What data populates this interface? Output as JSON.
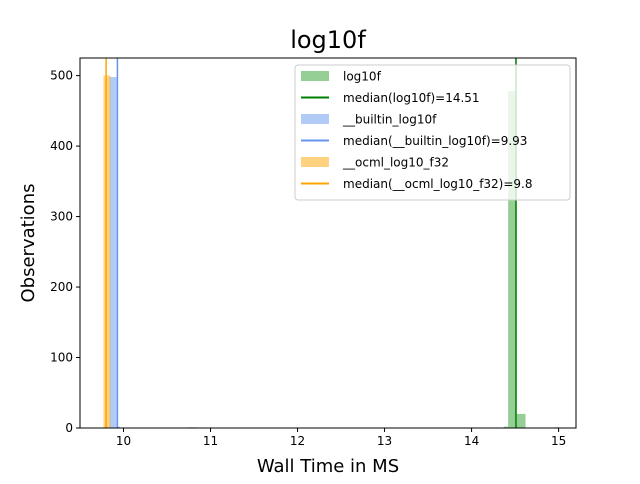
{
  "chart_data": {
    "type": "bar",
    "title": "log10f",
    "xlabel": "Wall Time in MS",
    "ylabel": "Observations",
    "xlim": [
      9.5,
      15.2
    ],
    "ylim": [
      0,
      525
    ],
    "x_ticks": [
      10,
      11,
      12,
      13,
      14,
      15
    ],
    "y_ticks": [
      0,
      100,
      200,
      300,
      400,
      500
    ],
    "x_tick_labels": [
      "10",
      "11",
      "12",
      "13",
      "14",
      "15"
    ],
    "y_tick_labels": [
      "0",
      "100",
      "200",
      "300",
      "400",
      "500"
    ],
    "grid": false,
    "legend_position": "top-right",
    "series": [
      {
        "name": "log10f",
        "color": "#2ca02c",
        "bars": [
          {
            "x0": 10.75,
            "x1": 10.85,
            "count": 1
          },
          {
            "x0": 14.37,
            "x1": 14.42,
            "count": 2
          },
          {
            "x0": 14.42,
            "x1": 14.52,
            "count": 478
          },
          {
            "x0": 14.52,
            "x1": 14.62,
            "count": 20
          },
          {
            "x0": 14.95,
            "x1": 15.0,
            "count": 1
          }
        ],
        "median": 14.51,
        "median_label": "median(log10f)=14.51",
        "median_color": "#008000"
      },
      {
        "name": "__builtin_log10f",
        "color": "#6495ed",
        "bars": [
          {
            "x0": 9.84,
            "x1": 9.92,
            "count": 498
          },
          {
            "x0": 9.92,
            "x1": 9.96,
            "count": 2
          }
        ],
        "median": 9.93,
        "median_label": "median(__builtin_log10f)=9.93",
        "median_color": "#6495ed"
      },
      {
        "name": "__ocml_log10_f32",
        "color": "#ffa500",
        "bars": [
          {
            "x0": 9.77,
            "x1": 9.85,
            "count": 500
          }
        ],
        "median": 9.8,
        "median_label": "median(__ocml_log10_f32)=9.8",
        "median_color": "#ffa500"
      }
    ]
  }
}
